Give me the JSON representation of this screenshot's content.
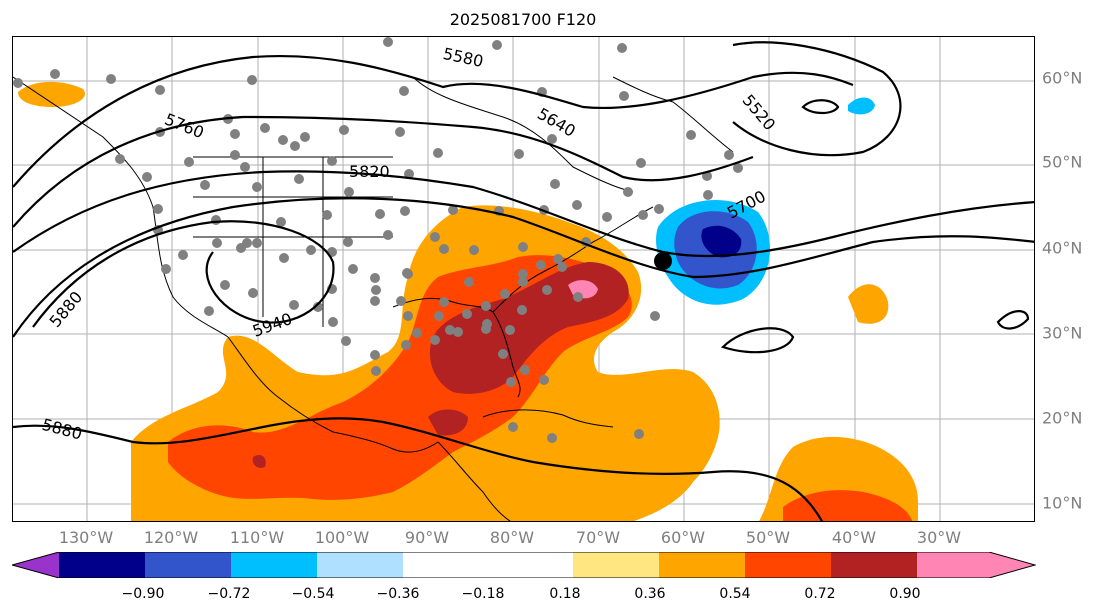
{
  "title": "2025081700 F120",
  "lon_labels": [
    "130°W",
    "120°W",
    "110°W",
    "100°W",
    "90°W",
    "80°W",
    "70°W",
    "60°W",
    "50°W",
    "40°W",
    "30°W"
  ],
  "lat_labels": [
    "60°N",
    "50°N",
    "40°N",
    "30°N",
    "20°N",
    "10°N"
  ],
  "colorbar": {
    "ticks": [
      "−0.90",
      "−0.72",
      "−0.54",
      "−0.36",
      "−0.18",
      "0.18",
      "0.36",
      "0.54",
      "0.72",
      "0.90"
    ],
    "colors": [
      "#9933cc",
      "#00008b",
      "#3355cc",
      "#00bfff",
      "#b0e0ff",
      "#ffffff",
      "#ffe680",
      "#ffa500",
      "#ff4500",
      "#b22222",
      "#ff85b5"
    ]
  },
  "contour_labels": [
    "5580",
    "5640",
    "5520",
    "5760",
    "5820",
    "5700",
    "5880",
    "5940",
    "5880"
  ],
  "colors": {
    "positive_light": "#ffa500",
    "positive_mid": "#ff4500",
    "positive_dark": "#b22222",
    "positive_max": "#ff85b5",
    "negative_light": "#00bfff",
    "negative_mid": "#3355cc",
    "negative_dark": "#00008b",
    "station_dots": "#808080"
  }
}
